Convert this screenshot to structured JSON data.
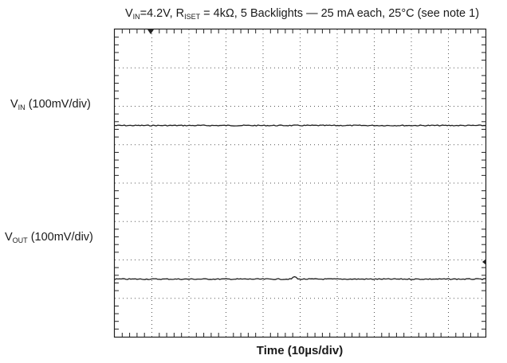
{
  "chart_data": {
    "type": "line",
    "title": {
      "vin_main": "V",
      "vin_sub": "IN",
      "part1": "=4.2V, R",
      "riset_sub": "ISET",
      "part2": " = 4kΩ, 5 Backlights — 25 mA each, 25°C (see note 1)"
    },
    "xlabel": "Time (10µs/div)",
    "x_divisions": 10,
    "y_divisions": 8,
    "grid": true,
    "series": [
      {
        "name_main": "V",
        "name_sub": "IN",
        "name_rest": " (100mV/div)",
        "level_div": 5.5,
        "values": [
          5.5,
          5.5
        ]
      },
      {
        "name_main": "V",
        "name_sub": "OUT",
        "name_rest": " (100mV/div)",
        "level_div": 1.5,
        "values": [
          1.5,
          1.5
        ]
      }
    ]
  }
}
